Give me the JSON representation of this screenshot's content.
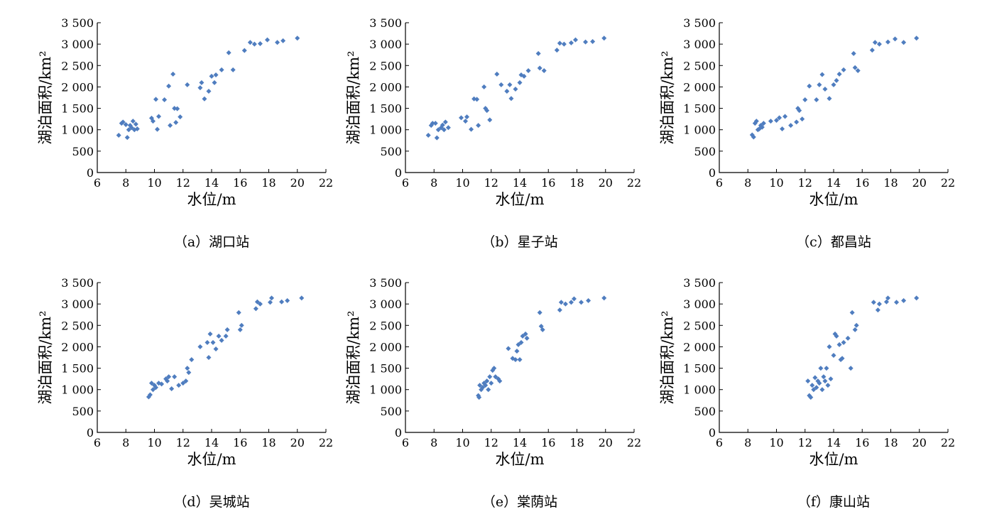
{
  "marker_color": "#4f7dbf",
  "chart_data": [
    {
      "type": "scatter",
      "caption": "（a）湖口站",
      "xlabel": "水位/m",
      "ylabel": "湖泊面积/km²",
      "xlim": [
        6,
        22
      ],
      "ylim": [
        0,
        3500
      ],
      "xticks": [
        6,
        8,
        10,
        12,
        14,
        16,
        18,
        20,
        22
      ],
      "xtick_labels": [
        "6",
        "8",
        "10",
        "12",
        "14",
        "16",
        "18",
        "20",
        "22"
      ],
      "yticks": [
        0,
        500,
        1000,
        1500,
        2000,
        2500,
        3000,
        3500
      ],
      "ytick_labels": [
        "0",
        "500",
        "1 000",
        "1 500",
        "2 000",
        "2 500",
        "3 000",
        "3 500"
      ],
      "x": [
        7.5,
        7.7,
        7.8,
        8.0,
        8.1,
        8.2,
        8.3,
        8.4,
        8.5,
        8.6,
        8.7,
        8.8,
        9.8,
        9.9,
        10.1,
        10.2,
        10.3,
        10.7,
        11.0,
        11.1,
        11.3,
        11.4,
        11.5,
        11.6,
        11.8,
        12.3,
        13.2,
        13.3,
        13.5,
        13.8,
        14.0,
        14.2,
        14.3,
        14.7,
        15.2,
        15.5,
        16.3,
        16.7,
        17.0,
        17.4,
        17.9,
        18.6,
        19.0,
        20.0
      ],
      "y": [
        870,
        1150,
        1180,
        1120,
        820,
        1000,
        1100,
        1050,
        1200,
        1000,
        1130,
        1020,
        1270,
        1200,
        1710,
        1010,
        1310,
        1700,
        2020,
        1100,
        2300,
        1500,
        1170,
        1490,
        1300,
        2050,
        1980,
        2100,
        1720,
        1900,
        2250,
        2100,
        2280,
        2400,
        2800,
        2400,
        2850,
        3040,
        3000,
        3010,
        3100,
        3040,
        3080,
        3140
      ]
    },
    {
      "type": "scatter",
      "caption": "（b）星子站",
      "xlabel": "水位/m",
      "ylabel": "湖泊面积/km²",
      "xlim": [
        6,
        22
      ],
      "ylim": [
        0,
        3500
      ],
      "xticks": [
        6,
        8,
        10,
        12,
        14,
        16,
        18,
        20,
        22
      ],
      "xtick_labels": [
        "6",
        "8",
        "10",
        "12",
        "14",
        "16",
        "18",
        "20",
        "22"
      ],
      "yticks": [
        0,
        500,
        1000,
        1500,
        2000,
        2500,
        3000,
        3500
      ],
      "ytick_labels": [
        "0",
        "500",
        "1 000",
        "1 500",
        "2 000",
        "2 500",
        "3 000",
        "3 500"
      ],
      "x": [
        7.6,
        7.8,
        7.9,
        8.1,
        8.2,
        8.3,
        8.5,
        8.6,
        8.7,
        8.8,
        9.0,
        9.9,
        10.2,
        10.3,
        10.6,
        10.8,
        11.0,
        11.1,
        11.5,
        11.6,
        11.7,
        11.9,
        12.4,
        12.7,
        13.1,
        13.3,
        13.4,
        13.7,
        14.0,
        14.1,
        14.3,
        14.6,
        15.3,
        15.4,
        15.7,
        16.6,
        16.8,
        17.1,
        17.6,
        17.9,
        18.6,
        19.1,
        19.9
      ],
      "y": [
        870,
        1100,
        1150,
        1150,
        810,
        1000,
        1050,
        1110,
        1000,
        1180,
        1050,
        1280,
        1200,
        1300,
        1010,
        1720,
        1710,
        1100,
        2000,
        1500,
        1450,
        1230,
        2300,
        2050,
        1900,
        2050,
        1730,
        1950,
        2100,
        2280,
        2250,
        2380,
        2780,
        2440,
        2380,
        2860,
        3020,
        3000,
        3030,
        3100,
        3050,
        3060,
        3140
      ]
    },
    {
      "type": "scatter",
      "caption": "（c）都昌站",
      "xlabel": "水位/m",
      "ylabel": "湖泊面积/km²",
      "xlim": [
        6,
        22
      ],
      "ylim": [
        0,
        3500
      ],
      "xticks": [
        6,
        8,
        10,
        12,
        14,
        16,
        18,
        20,
        22
      ],
      "xtick_labels": [
        "6",
        "8",
        "10",
        "12",
        "14",
        "16",
        "18",
        "20",
        "22"
      ],
      "yticks": [
        0,
        500,
        1000,
        1500,
        2000,
        2500,
        3000,
        3500
      ],
      "ytick_labels": [
        "0",
        "500",
        "1 000",
        "1 500",
        "2 000",
        "2 500",
        "3 000",
        "3 500"
      ],
      "x": [
        8.3,
        8.4,
        8.5,
        8.6,
        8.7,
        8.8,
        8.9,
        9.0,
        9.1,
        9.6,
        10.0,
        10.2,
        10.4,
        10.6,
        11.0,
        11.4,
        11.5,
        11.6,
        11.8,
        12.0,
        12.3,
        12.8,
        13.0,
        13.2,
        13.4,
        13.7,
        14.0,
        14.2,
        14.4,
        14.7,
        15.4,
        15.5,
        15.7,
        16.7,
        16.9,
        17.2,
        17.8,
        18.3,
        18.9,
        19.8
      ],
      "y": [
        880,
        830,
        1150,
        1200,
        1000,
        1020,
        1100,
        1060,
        1150,
        1200,
        1220,
        1280,
        1020,
        1310,
        1100,
        1180,
        1500,
        1450,
        1250,
        1700,
        2020,
        1700,
        2050,
        2290,
        1950,
        1730,
        2050,
        2150,
        2300,
        2400,
        2780,
        2450,
        2380,
        2860,
        3040,
        3000,
        3050,
        3120,
        3040,
        3140
      ]
    },
    {
      "type": "scatter",
      "caption": "（d）吴城站",
      "xlabel": "水位/m",
      "ylabel": "湖泊面积/km²",
      "xlim": [
        6,
        22
      ],
      "ylim": [
        0,
        3500
      ],
      "xticks": [
        6,
        8,
        10,
        12,
        14,
        16,
        18,
        20,
        22
      ],
      "xtick_labels": [
        "6",
        "8",
        "10",
        "12",
        "14",
        "16",
        "18",
        "20",
        "22"
      ],
      "yticks": [
        0,
        500,
        1000,
        1500,
        2000,
        2500,
        3000,
        3500
      ],
      "ytick_labels": [
        "0",
        "500",
        "1 000",
        "1 500",
        "2 000",
        "2 500",
        "3 000",
        "3 500"
      ],
      "x": [
        9.6,
        9.7,
        9.8,
        9.9,
        10.0,
        10.1,
        10.3,
        10.5,
        10.8,
        10.9,
        11.0,
        11.2,
        11.4,
        11.7,
        12.0,
        12.2,
        12.3,
        12.4,
        12.6,
        13.2,
        13.7,
        13.8,
        13.9,
        14.1,
        14.3,
        14.5,
        14.7,
        15.0,
        15.1,
        15.9,
        16.0,
        16.1,
        17.1,
        17.2,
        17.4,
        18.1,
        18.2,
        18.9,
        19.3,
        20.3
      ],
      "y": [
        830,
        880,
        1150,
        1000,
        1100,
        1050,
        1150,
        1130,
        1250,
        1200,
        1300,
        1020,
        1300,
        1100,
        1150,
        1200,
        1500,
        1400,
        1700,
        2000,
        2100,
        1750,
        2300,
        2100,
        1950,
        2250,
        2150,
        2250,
        2400,
        2800,
        2400,
        2500,
        2890,
        3050,
        3000,
        3040,
        3140,
        3050,
        3080,
        3140
      ]
    },
    {
      "type": "scatter",
      "caption": "（e）棠荫站",
      "xlabel": "水位/m",
      "ylabel": "湖泊面积/km²",
      "xlim": [
        6,
        22
      ],
      "ylim": [
        0,
        3500
      ],
      "xticks": [
        6,
        8,
        10,
        12,
        14,
        16,
        18,
        20,
        22
      ],
      "xtick_labels": [
        "6",
        "8",
        "10",
        "12",
        "14",
        "16",
        "18",
        "20",
        "22"
      ],
      "yticks": [
        0,
        500,
        1000,
        1500,
        2000,
        2500,
        3000,
        3500
      ],
      "ytick_labels": [
        "0",
        "500",
        "1 000",
        "1 500",
        "2 000",
        "2 500",
        "3 000",
        "3 500"
      ],
      "x": [
        11.1,
        11.15,
        11.2,
        11.3,
        11.4,
        11.5,
        11.6,
        11.7,
        11.8,
        11.9,
        12.0,
        12.1,
        12.2,
        12.3,
        12.5,
        12.6,
        13.2,
        13.5,
        13.7,
        13.8,
        13.9,
        14.0,
        14.1,
        14.2,
        14.4,
        14.5,
        15.4,
        15.5,
        15.6,
        16.8,
        16.9,
        17.2,
        17.6,
        17.8,
        18.3,
        18.8,
        19.9
      ],
      "y": [
        860,
        820,
        1100,
        1000,
        1050,
        1150,
        1100,
        1200,
        1000,
        1300,
        1150,
        1450,
        1500,
        1300,
        1250,
        1200,
        1960,
        1730,
        1700,
        1900,
        2050,
        1700,
        2100,
        2250,
        2300,
        2200,
        2800,
        2480,
        2400,
        2860,
        3040,
        3000,
        3040,
        3120,
        3040,
        3080,
        3140
      ]
    },
    {
      "type": "scatter",
      "caption": "（f）康山站",
      "xlabel": "水位/m",
      "ylabel": "湖泊面积/km²",
      "xlim": [
        6,
        22
      ],
      "ylim": [
        0,
        3500
      ],
      "xticks": [
        6,
        8,
        10,
        12,
        14,
        16,
        18,
        20,
        22
      ],
      "xtick_labels": [
        "6",
        "8",
        "10",
        "12",
        "14",
        "16",
        "18",
        "20",
        "22"
      ],
      "yticks": [
        0,
        500,
        1000,
        1500,
        2000,
        2500,
        3000,
        3500
      ],
      "ytick_labels": [
        "0",
        "500",
        "1 000",
        "1 500",
        "2 000",
        "2 500",
        "3 000",
        "3 500"
      ],
      "x": [
        12.2,
        12.3,
        12.4,
        12.5,
        12.6,
        12.7,
        12.8,
        12.9,
        13.0,
        13.1,
        13.2,
        13.3,
        13.4,
        13.5,
        13.6,
        13.7,
        13.8,
        14.0,
        14.1,
        14.2,
        14.4,
        14.5,
        14.6,
        14.7,
        15.0,
        15.2,
        15.3,
        15.5,
        15.6,
        16.8,
        17.1,
        17.2,
        17.7,
        17.8,
        18.4,
        18.9,
        19.8
      ],
      "y": [
        1200,
        860,
        820,
        1100,
        1000,
        1280,
        1050,
        1200,
        1150,
        1500,
        1000,
        1300,
        1200,
        1500,
        1100,
        2000,
        1250,
        1800,
        2300,
        2250,
        2050,
        1700,
        1730,
        2100,
        2200,
        1500,
        2800,
        2400,
        2500,
        3040,
        2860,
        3000,
        3050,
        3140,
        3040,
        3080,
        3140
      ]
    }
  ]
}
